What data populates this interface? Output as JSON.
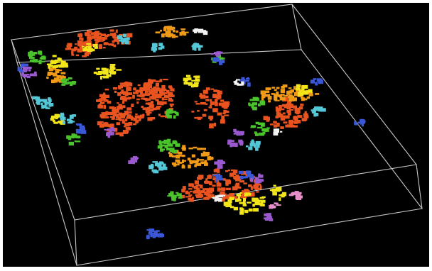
{
  "image": {
    "background_color": "#000000",
    "frame_color": "#ffffff",
    "box_edge_color": "#c8c8c8",
    "palette": {
      "orange": "#e8531f",
      "amber": "#f09a17",
      "yellow": "#f2e61a",
      "green": "#49c42a",
      "cyan": "#55c8d8",
      "blue": "#3a57d6",
      "purple": "#9a59cf",
      "pink": "#e68fc9",
      "white": "#f3f3f3"
    },
    "icons": [
      "simulation-box-wireframe",
      "percolation-cluster"
    ]
  }
}
